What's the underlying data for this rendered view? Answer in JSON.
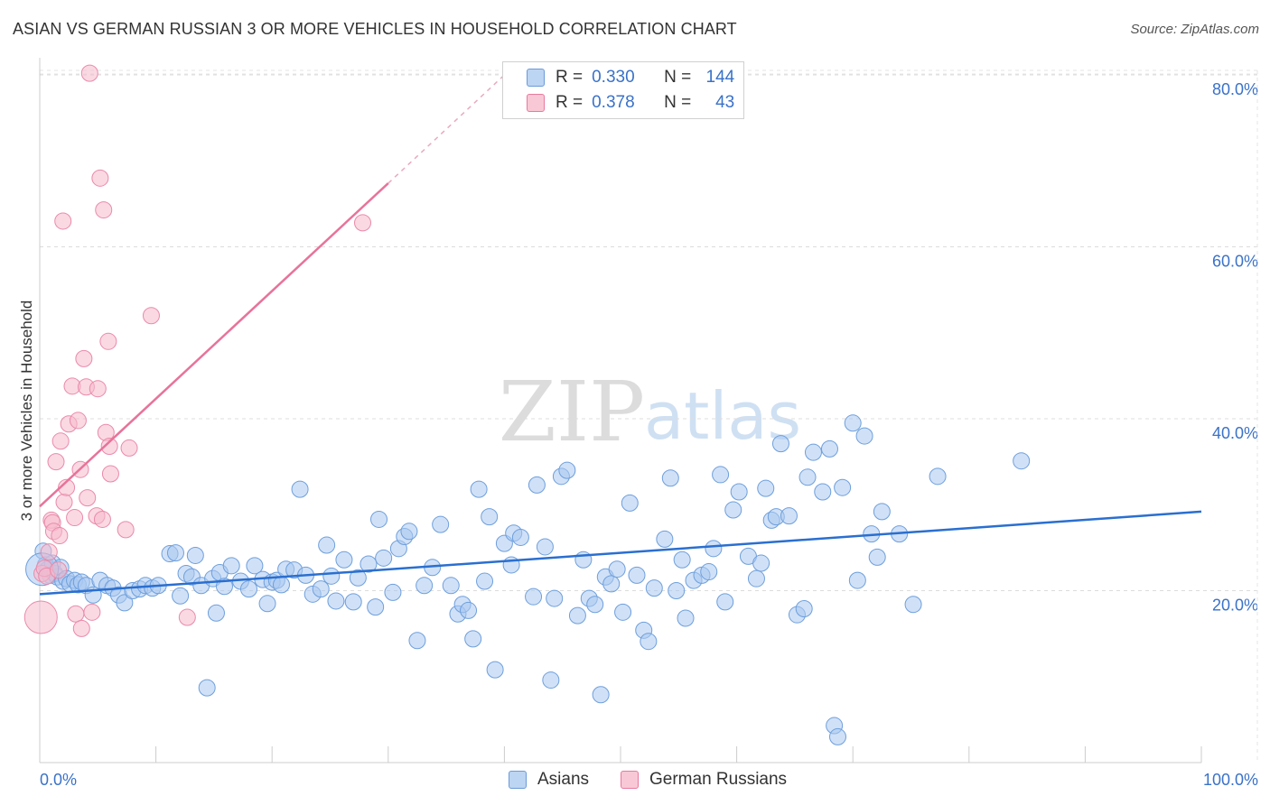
{
  "header": {
    "title": "ASIAN VS GERMAN RUSSIAN 3 OR MORE VEHICLES IN HOUSEHOLD CORRELATION CHART",
    "source": "Source: ZipAtlas.com"
  },
  "watermark": {
    "zip": "ZIP",
    "atlas": "atlas"
  },
  "legend": {
    "rows": [
      {
        "r_label": "R =",
        "r_value": "0.330",
        "n_label": "N =",
        "n_value": "144",
        "color": "#a9c9f0"
      },
      {
        "r_label": "R =",
        "r_value": "0.378",
        "n_label": "N =",
        "n_value": "43",
        "color": "#f6b9cc"
      }
    ]
  },
  "bottom_legend": [
    {
      "label": "Asians",
      "color": "#a9c9f0"
    },
    {
      "label": "German Russians",
      "color": "#f6b9cc"
    }
  ],
  "colors": {
    "blue": "#5b93d8",
    "blue_fill": "#a9c9f0",
    "pink": "#e8739a",
    "pink_fill": "#f6b9cc",
    "tick_text": "#3a72c8",
    "grid": "#dcdcdc"
  },
  "chart_data": {
    "type": "scatter",
    "title": "ASIAN VS GERMAN RUSSIAN 3 OR MORE VEHICLES IN HOUSEHOLD CORRELATION CHART",
    "xlabel": "",
    "ylabel": "3 or more Vehicles in Household",
    "xlim": [
      0,
      100
    ],
    "ylim": [
      0,
      82
    ],
    "x_tick_labels": [
      "0.0%",
      "100.0%"
    ],
    "y_ticks": [
      20,
      40,
      60,
      80
    ],
    "y_tick_labels": [
      "20.0%",
      "40.0%",
      "60.0%",
      "80.0%"
    ],
    "grid": true,
    "legend_position": "top-center",
    "series": [
      {
        "name": "Asians",
        "color": "#5b93d8",
        "trend": {
          "x": [
            0,
            100
          ],
          "y": [
            19.6,
            29.2
          ]
        },
        "points": [
          [
            0.3,
            24.6
          ],
          [
            0.5,
            23.0
          ],
          [
            0.7,
            22.5
          ],
          [
            0.9,
            21.8
          ],
          [
            1.1,
            23.2
          ],
          [
            1.3,
            22.0
          ],
          [
            1.5,
            21.6
          ],
          [
            1.8,
            22.7
          ],
          [
            2.0,
            21.1
          ],
          [
            2.3,
            21.4
          ],
          [
            2.6,
            20.8
          ],
          [
            3.0,
            21.2
          ],
          [
            3.3,
            20.7
          ],
          [
            3.6,
            21.0
          ],
          [
            4.0,
            20.6
          ],
          [
            4.6,
            19.5
          ],
          [
            5.2,
            21.2
          ],
          [
            5.8,
            20.6
          ],
          [
            6.3,
            20.3
          ],
          [
            6.8,
            19.5
          ],
          [
            7.3,
            18.6
          ],
          [
            8.0,
            20.0
          ],
          [
            8.6,
            20.2
          ],
          [
            9.1,
            20.6
          ],
          [
            9.7,
            20.3
          ],
          [
            10.2,
            20.6
          ],
          [
            11.2,
            24.3
          ],
          [
            11.7,
            24.4
          ],
          [
            12.1,
            19.4
          ],
          [
            12.6,
            22.0
          ],
          [
            13.1,
            21.6
          ],
          [
            13.4,
            24.1
          ],
          [
            13.9,
            20.6
          ],
          [
            14.4,
            8.7
          ],
          [
            14.9,
            21.4
          ],
          [
            15.2,
            17.4
          ],
          [
            15.5,
            22.1
          ],
          [
            15.9,
            20.5
          ],
          [
            16.5,
            22.9
          ],
          [
            17.3,
            21.1
          ],
          [
            18.0,
            20.2
          ],
          [
            18.5,
            22.9
          ],
          [
            19.2,
            21.3
          ],
          [
            19.6,
            18.5
          ],
          [
            20.0,
            21.0
          ],
          [
            20.4,
            21.2
          ],
          [
            20.8,
            20.7
          ],
          [
            21.2,
            22.5
          ],
          [
            21.9,
            22.4
          ],
          [
            22.4,
            31.8
          ],
          [
            22.9,
            21.8
          ],
          [
            23.5,
            19.6
          ],
          [
            24.2,
            20.2
          ],
          [
            24.7,
            25.3
          ],
          [
            25.1,
            21.7
          ],
          [
            25.5,
            18.8
          ],
          [
            26.2,
            23.6
          ],
          [
            27.0,
            18.7
          ],
          [
            27.4,
            21.5
          ],
          [
            28.3,
            23.1
          ],
          [
            28.9,
            18.1
          ],
          [
            29.2,
            28.3
          ],
          [
            29.6,
            23.8
          ],
          [
            30.4,
            19.8
          ],
          [
            30.9,
            24.9
          ],
          [
            31.4,
            26.3
          ],
          [
            31.8,
            26.9
          ],
          [
            32.5,
            14.2
          ],
          [
            33.1,
            20.6
          ],
          [
            33.8,
            22.7
          ],
          [
            34.5,
            27.7
          ],
          [
            35.4,
            20.6
          ],
          [
            36.0,
            17.3
          ],
          [
            36.4,
            18.4
          ],
          [
            36.9,
            17.7
          ],
          [
            37.3,
            14.4
          ],
          [
            37.8,
            31.8
          ],
          [
            38.3,
            21.1
          ],
          [
            38.7,
            28.6
          ],
          [
            39.2,
            10.8
          ],
          [
            40.0,
            25.5
          ],
          [
            40.6,
            23.0
          ],
          [
            40.8,
            26.7
          ],
          [
            41.4,
            26.2
          ],
          [
            42.5,
            19.3
          ],
          [
            42.8,
            32.3
          ],
          [
            43.5,
            25.1
          ],
          [
            44.0,
            9.6
          ],
          [
            44.3,
            19.1
          ],
          [
            44.9,
            33.3
          ],
          [
            45.4,
            34.0
          ],
          [
            46.3,
            17.1
          ],
          [
            46.8,
            23.6
          ],
          [
            47.3,
            19.1
          ],
          [
            47.8,
            18.4
          ],
          [
            48.3,
            7.9
          ],
          [
            48.7,
            21.6
          ],
          [
            49.2,
            20.8
          ],
          [
            49.7,
            22.5
          ],
          [
            50.2,
            17.5
          ],
          [
            50.8,
            30.2
          ],
          [
            51.4,
            21.8
          ],
          [
            52.0,
            15.4
          ],
          [
            52.4,
            14.1
          ],
          [
            52.9,
            20.3
          ],
          [
            53.8,
            26.0
          ],
          [
            54.3,
            33.1
          ],
          [
            54.8,
            20.0
          ],
          [
            55.3,
            23.6
          ],
          [
            55.6,
            16.8
          ],
          [
            56.3,
            21.2
          ],
          [
            57.0,
            21.8
          ],
          [
            57.6,
            22.2
          ],
          [
            58.0,
            24.9
          ],
          [
            58.6,
            33.5
          ],
          [
            59.0,
            18.7
          ],
          [
            59.7,
            29.4
          ],
          [
            60.2,
            31.5
          ],
          [
            61.0,
            24.0
          ],
          [
            61.7,
            21.4
          ],
          [
            62.1,
            23.2
          ],
          [
            62.5,
            31.9
          ],
          [
            63.0,
            28.2
          ],
          [
            63.4,
            28.6
          ],
          [
            63.8,
            37.1
          ],
          [
            64.5,
            28.7
          ],
          [
            65.2,
            17.2
          ],
          [
            65.8,
            17.9
          ],
          [
            66.1,
            33.2
          ],
          [
            66.6,
            36.1
          ],
          [
            67.4,
            31.5
          ],
          [
            68.0,
            36.5
          ],
          [
            68.4,
            4.3
          ],
          [
            68.7,
            3.0
          ],
          [
            69.1,
            32.0
          ],
          [
            70.0,
            39.5
          ],
          [
            70.4,
            21.2
          ],
          [
            71.0,
            38.0
          ],
          [
            71.6,
            26.6
          ],
          [
            72.1,
            23.9
          ],
          [
            72.5,
            29.2
          ],
          [
            74.0,
            26.6
          ],
          [
            75.2,
            18.4
          ],
          [
            77.3,
            33.3
          ],
          [
            84.5,
            35.1
          ]
        ],
        "big_points": [
          [
            0.2,
            22.5
          ]
        ]
      },
      {
        "name": "German Russians",
        "color": "#e8739a",
        "trend": {
          "x": [
            0,
            30
          ],
          "y": [
            29.8,
            67.4
          ]
        },
        "trend_dashed": {
          "x": [
            30,
            40
          ],
          "y": [
            67.4,
            80
          ]
        },
        "points": [
          [
            0.2,
            22.0
          ],
          [
            0.4,
            22.6
          ],
          [
            0.6,
            21.7
          ],
          [
            0.8,
            24.5
          ],
          [
            1.0,
            28.2
          ],
          [
            1.1,
            27.9
          ],
          [
            1.2,
            26.9
          ],
          [
            1.4,
            35.0
          ],
          [
            1.6,
            22.4
          ],
          [
            1.7,
            26.4
          ],
          [
            1.8,
            37.4
          ],
          [
            2.0,
            63.0
          ],
          [
            2.1,
            30.3
          ],
          [
            2.3,
            32.0
          ],
          [
            2.5,
            39.4
          ],
          [
            2.8,
            43.8
          ],
          [
            3.0,
            28.5
          ],
          [
            3.1,
            17.3
          ],
          [
            3.3,
            39.8
          ],
          [
            3.5,
            34.1
          ],
          [
            3.6,
            15.6
          ],
          [
            3.8,
            47.0
          ],
          [
            4.0,
            43.7
          ],
          [
            4.1,
            30.8
          ],
          [
            4.3,
            80.2
          ],
          [
            4.5,
            17.5
          ],
          [
            4.9,
            28.7
          ],
          [
            5.0,
            43.5
          ],
          [
            5.2,
            68.0
          ],
          [
            5.4,
            28.3
          ],
          [
            5.5,
            64.3
          ],
          [
            5.7,
            38.4
          ],
          [
            5.9,
            49.0
          ],
          [
            6.0,
            36.8
          ],
          [
            6.1,
            33.6
          ],
          [
            7.4,
            27.1
          ],
          [
            7.7,
            36.6
          ],
          [
            9.6,
            52.0
          ],
          [
            12.7,
            16.9
          ],
          [
            27.8,
            62.8
          ]
        ],
        "big_points": [
          [
            0.1,
            16.9
          ]
        ]
      }
    ]
  },
  "axis": {
    "x_min_label": "0.0%",
    "x_max_label": "100.0%",
    "y_label": "3 or more Vehicles in Household"
  }
}
